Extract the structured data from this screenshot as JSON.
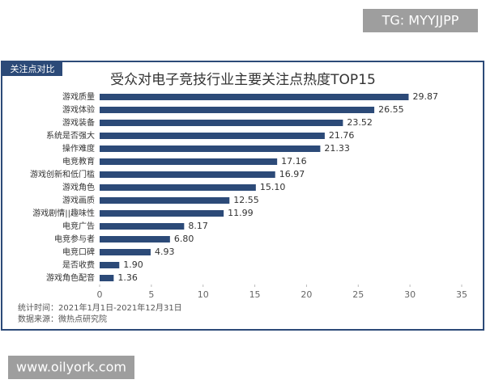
{
  "watermark_top": "TG: MYYJJPP",
  "watermark_bottom": "www.oilyork.com",
  "chart_data": {
    "type": "hbar",
    "tag": "关注点对比",
    "title": "受众对电子竞技行业主要关注点热度TOP15",
    "categories": [
      "游戏质量",
      "游戏体验",
      "游戏装备",
      "系统是否强大",
      "操作难度",
      "电竞教育",
      "游戏创新和低门槛",
      "游戏角色",
      "游戏画质",
      "游戏剧情||趣味性",
      "电竞广告",
      "电竞参与者",
      "电竞口碑",
      "是否收费",
      "游戏角色配音"
    ],
    "values": [
      29.87,
      26.55,
      23.52,
      21.76,
      21.33,
      17.16,
      16.97,
      15.1,
      12.55,
      11.99,
      8.17,
      6.8,
      4.93,
      1.9,
      1.36
    ],
    "value_labels": [
      "29.87",
      "26.55",
      "23.52",
      "21.76",
      "21.33",
      "17.16",
      "16.97",
      "15.10",
      "12.55",
      "11.99",
      "8.17",
      "6.80",
      "4.93",
      "1.90",
      "1.36"
    ],
    "color": "#2c4a78",
    "xlim": [
      0,
      35
    ],
    "xticks": [
      0,
      5,
      10,
      15,
      20,
      25,
      30,
      35
    ],
    "notes": [
      "统计时间：2021年1月1日-2021年12月31日",
      "数据来源：微热点研究院"
    ]
  }
}
